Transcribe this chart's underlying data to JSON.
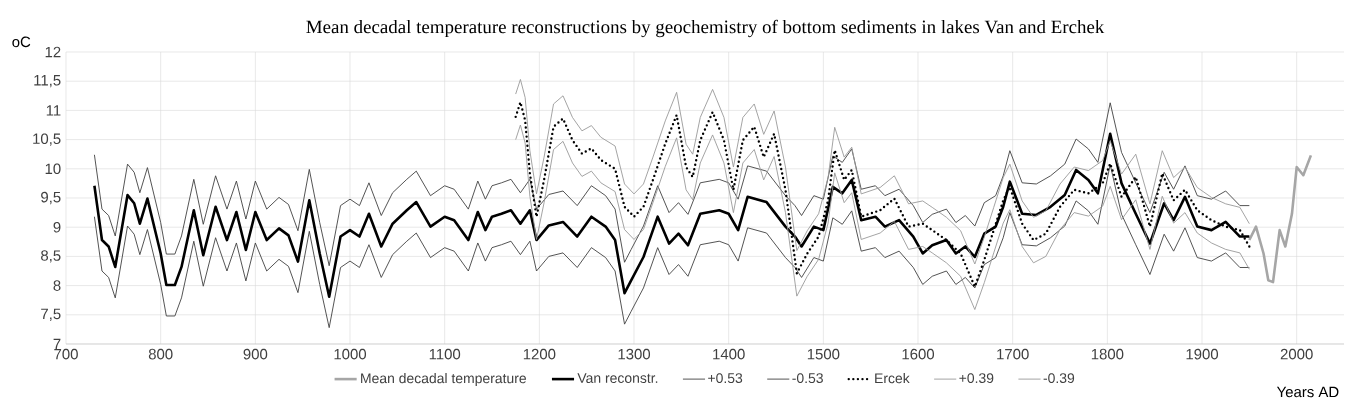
{
  "chart_data": {
    "type": "line",
    "title": "Mean decadal temperature reconstructions by geochemistry of bottom sediments in lakes Van and Erchek",
    "xlabel": "Years AD",
    "ylabel": "oC",
    "xlim": [
      700,
      2050
    ],
    "ylim": [
      7,
      12
    ],
    "xticks": [
      700,
      800,
      900,
      1000,
      1100,
      1200,
      1300,
      1400,
      1500,
      1600,
      1700,
      1800,
      1900,
      2000
    ],
    "yticks": [
      7,
      {
        "value": 7.5,
        "label": "7,5"
      },
      8,
      {
        "value": 8.5,
        "label": "8,5"
      },
      9,
      {
        "value": 9.5,
        "label": "9,5"
      },
      10,
      {
        "value": 10.5,
        "label": "10,5"
      },
      11,
      {
        "value": 11.5,
        "label": "11,5"
      },
      12
    ],
    "grid": true,
    "legend": "bottom",
    "series": [
      {
        "name": "Mean decadal temperature",
        "color": "#a6a6a6",
        "x": [
          1950,
          1957,
          1965,
          1970,
          1975,
          1982,
          1988,
          1995,
          2000,
          2007,
          2015
        ],
        "values": [
          8.78,
          9.01,
          8.55,
          8.09,
          8.06,
          8.95,
          8.67,
          9.23,
          10.03,
          9.89,
          10.23
        ]
      },
      {
        "name": "Van reconstr.",
        "color": "#000000",
        "x": [
          730,
          738,
          745,
          752,
          765,
          772,
          778,
          786,
          800,
          806,
          815,
          822,
          835,
          845,
          858,
          870,
          880,
          890,
          900,
          912,
          925,
          935,
          945,
          957,
          968,
          978,
          990,
          1000,
          1010,
          1020,
          1033,
          1045,
          1060,
          1070,
          1085,
          1100,
          1110,
          1125,
          1135,
          1143,
          1150,
          1160,
          1170,
          1180,
          1190,
          1197,
          1210,
          1225,
          1240,
          1255,
          1270,
          1280,
          1290,
          1297,
          1310,
          1325,
          1337,
          1347,
          1357,
          1370,
          1390,
          1400,
          1410,
          1420,
          1440,
          1460,
          1470,
          1477,
          1490,
          1500,
          1510,
          1520,
          1530,
          1540,
          1555,
          1565,
          1580,
          1595,
          1605,
          1615,
          1630,
          1640,
          1650,
          1660,
          1670,
          1682,
          1690,
          1697,
          1710,
          1725,
          1740,
          1755,
          1767,
          1780,
          1790,
          1803,
          1815,
          1830,
          1845,
          1860,
          1870,
          1882,
          1895,
          1910,
          1925,
          1940,
          1950
        ],
        "values": [
          9.71,
          8.78,
          8.67,
          8.32,
          9.55,
          9.41,
          9.06,
          9.49,
          8.55,
          8.01,
          8.01,
          8.32,
          9.29,
          8.52,
          9.35,
          8.78,
          9.26,
          8.61,
          9.26,
          8.78,
          8.98,
          8.86,
          8.41,
          9.46,
          8.55,
          7.81,
          8.84,
          8.95,
          8.84,
          9.23,
          8.67,
          9.06,
          9.29,
          9.43,
          9.01,
          9.18,
          9.12,
          8.78,
          9.26,
          8.95,
          9.18,
          9.23,
          9.29,
          9.06,
          9.29,
          8.78,
          9.03,
          9.09,
          8.84,
          9.18,
          9.01,
          8.78,
          7.87,
          8.09,
          8.49,
          9.18,
          8.72,
          8.89,
          8.69,
          9.23,
          9.29,
          9.23,
          8.95,
          9.52,
          9.43,
          9.01,
          8.84,
          8.67,
          9.01,
          8.95,
          9.69,
          9.58,
          9.81,
          9.12,
          9.18,
          9.01,
          9.12,
          8.84,
          8.55,
          8.69,
          8.78,
          8.55,
          8.67,
          8.49,
          8.89,
          9.01,
          9.35,
          9.78,
          9.23,
          9.21,
          9.35,
          9.55,
          9.98,
          9.81,
          9.58,
          10.6,
          9.75,
          9.23,
          8.72,
          9.41,
          9.12,
          9.52,
          9.01,
          8.95,
          9.09,
          8.84,
          8.84
        ]
      },
      {
        "name": "+0.53",
        "color": "#404040",
        "x": [
          730,
          738,
          745,
          752,
          765,
          772,
          778,
          786,
          800,
          806,
          815,
          822,
          835,
          845,
          858,
          870,
          880,
          890,
          900,
          912,
          925,
          935,
          945,
          957,
          968,
          978,
          990,
          1000,
          1010,
          1020,
          1033,
          1045,
          1060,
          1070,
          1085,
          1100,
          1110,
          1125,
          1135,
          1143,
          1150,
          1160,
          1170,
          1180,
          1190,
          1197,
          1210,
          1225,
          1240,
          1255,
          1270,
          1280,
          1290,
          1297,
          1310,
          1325,
          1337,
          1347,
          1357,
          1370,
          1390,
          1400,
          1410,
          1420,
          1440,
          1460,
          1470,
          1477,
          1490,
          1500,
          1510,
          1520,
          1530,
          1540,
          1555,
          1565,
          1580,
          1595,
          1605,
          1615,
          1630,
          1640,
          1650,
          1660,
          1670,
          1682,
          1690,
          1697,
          1710,
          1725,
          1740,
          1755,
          1767,
          1780,
          1790,
          1803,
          1815,
          1830,
          1845,
          1860,
          1870,
          1882,
          1895,
          1910,
          1925,
          1940,
          1950
        ],
        "values": [
          10.24,
          9.31,
          9.2,
          8.85,
          10.08,
          9.94,
          9.59,
          10.02,
          9.08,
          8.54,
          8.54,
          8.85,
          9.82,
          9.05,
          9.88,
          9.31,
          9.79,
          9.14,
          9.79,
          9.31,
          9.51,
          9.39,
          8.94,
          9.99,
          9.08,
          8.34,
          9.37,
          9.48,
          9.37,
          9.76,
          9.2,
          9.59,
          9.82,
          9.96,
          9.54,
          9.71,
          9.65,
          9.31,
          9.79,
          9.48,
          9.71,
          9.76,
          9.82,
          9.59,
          9.82,
          9.31,
          9.56,
          9.62,
          9.37,
          9.71,
          9.54,
          9.31,
          8.4,
          8.62,
          9.02,
          9.71,
          9.25,
          9.42,
          9.22,
          9.76,
          9.82,
          9.76,
          9.48,
          10.05,
          9.96,
          9.54,
          9.37,
          9.2,
          9.54,
          9.48,
          10.22,
          10.11,
          10.34,
          9.65,
          9.71,
          9.54,
          9.65,
          9.37,
          9.08,
          9.22,
          9.31,
          9.08,
          9.2,
          9.02,
          9.42,
          9.54,
          9.88,
          10.31,
          9.76,
          9.74,
          9.88,
          10.08,
          10.51,
          10.34,
          10.11,
          11.13,
          10.28,
          9.76,
          9.25,
          9.94,
          9.65,
          10.05,
          9.54,
          9.48,
          9.62,
          9.37,
          9.37
        ]
      },
      {
        "name": "-0.53",
        "color": "#404040",
        "x": [
          730,
          738,
          745,
          752,
          765,
          772,
          778,
          786,
          800,
          806,
          815,
          822,
          835,
          845,
          858,
          870,
          880,
          890,
          900,
          912,
          925,
          935,
          945,
          957,
          968,
          978,
          990,
          1000,
          1010,
          1020,
          1033,
          1045,
          1060,
          1070,
          1085,
          1100,
          1110,
          1125,
          1135,
          1143,
          1150,
          1160,
          1170,
          1180,
          1190,
          1197,
          1210,
          1225,
          1240,
          1255,
          1270,
          1280,
          1290,
          1297,
          1310,
          1325,
          1337,
          1347,
          1357,
          1370,
          1390,
          1400,
          1410,
          1420,
          1440,
          1460,
          1470,
          1477,
          1490,
          1500,
          1510,
          1520,
          1530,
          1540,
          1555,
          1565,
          1580,
          1595,
          1605,
          1615,
          1630,
          1640,
          1650,
          1660,
          1670,
          1682,
          1690,
          1697,
          1710,
          1725,
          1740,
          1755,
          1767,
          1780,
          1790,
          1803,
          1815,
          1830,
          1845,
          1860,
          1870,
          1882,
          1895,
          1910,
          1925,
          1940,
          1950
        ],
        "values": [
          9.18,
          8.25,
          8.14,
          7.79,
          9.02,
          8.88,
          8.53,
          8.96,
          8.02,
          7.48,
          7.48,
          7.79,
          8.76,
          7.99,
          8.82,
          8.25,
          8.73,
          8.08,
          8.73,
          8.25,
          8.45,
          8.33,
          7.88,
          8.93,
          8.02,
          7.28,
          8.31,
          8.42,
          8.31,
          8.7,
          8.14,
          8.53,
          8.76,
          8.9,
          8.48,
          8.65,
          8.59,
          8.25,
          8.73,
          8.42,
          8.65,
          8.7,
          8.76,
          8.53,
          8.76,
          8.25,
          8.5,
          8.56,
          8.31,
          8.65,
          8.48,
          8.25,
          7.34,
          7.56,
          7.96,
          8.65,
          8.19,
          8.36,
          8.16,
          8.7,
          8.76,
          8.7,
          8.42,
          8.99,
          8.9,
          8.48,
          8.31,
          8.14,
          8.48,
          8.42,
          9.16,
          9.05,
          9.28,
          8.59,
          8.65,
          8.48,
          8.59,
          8.31,
          8.02,
          8.16,
          8.25,
          8.02,
          8.14,
          7.96,
          8.36,
          8.48,
          8.82,
          9.25,
          8.7,
          8.68,
          8.82,
          9.02,
          9.45,
          9.28,
          9.05,
          10.07,
          9.22,
          8.7,
          8.19,
          8.88,
          8.59,
          8.99,
          8.48,
          8.42,
          8.56,
          8.31,
          8.31
        ]
      },
      {
        "name": "Ercek",
        "color": "#000000",
        "line_style": "dotted",
        "x": [
          1175,
          1180,
          1185,
          1190,
          1197,
          1205,
          1215,
          1225,
          1235,
          1245,
          1255,
          1265,
          1280,
          1290,
          1300,
          1310,
          1320,
          1333,
          1345,
          1355,
          1362,
          1370,
          1383,
          1395,
          1405,
          1415,
          1427,
          1437,
          1448,
          1460,
          1472,
          1483,
          1495,
          1505,
          1512,
          1522,
          1530,
          1540,
          1560,
          1575,
          1590,
          1605,
          1615,
          1630,
          1645,
          1660,
          1670,
          1680,
          1690,
          1697,
          1710,
          1722,
          1735,
          1750,
          1765,
          1780,
          1795,
          1803,
          1815,
          1830,
          1845,
          1858,
          1870,
          1882,
          1895,
          1910,
          1925,
          1940,
          1950
        ],
        "values": [
          10.89,
          11.14,
          10.83,
          9.92,
          9.18,
          9.81,
          10.72,
          10.86,
          10.49,
          10.26,
          10.35,
          10.15,
          10.0,
          9.35,
          9.18,
          9.35,
          9.81,
          10.43,
          10.92,
          10.03,
          9.86,
          10.49,
          10.97,
          10.49,
          9.64,
          10.49,
          10.72,
          10.2,
          10.6,
          9.64,
          8.21,
          8.55,
          8.84,
          9.46,
          10.32,
          9.81,
          9.98,
          9.18,
          9.29,
          9.49,
          9.01,
          9.06,
          8.95,
          8.78,
          8.55,
          7.98,
          8.44,
          8.95,
          9.46,
          9.69,
          9.06,
          8.78,
          8.89,
          9.35,
          9.64,
          9.58,
          9.75,
          10.09,
          9.52,
          9.86,
          9.01,
          9.92,
          9.46,
          9.64,
          9.29,
          9.12,
          9.01,
          8.95,
          8.67
        ]
      },
      {
        "name": "+0.39",
        "color": "#999999",
        "x": [
          1175,
          1180,
          1185,
          1190,
          1197,
          1205,
          1215,
          1225,
          1235,
          1245,
          1255,
          1265,
          1280,
          1290,
          1300,
          1310,
          1320,
          1333,
          1345,
          1355,
          1362,
          1370,
          1383,
          1395,
          1405,
          1415,
          1427,
          1437,
          1448,
          1460,
          1472,
          1483,
          1495,
          1505,
          1512,
          1522,
          1530,
          1540,
          1560,
          1575,
          1590,
          1605,
          1615,
          1630,
          1645,
          1660,
          1670,
          1680,
          1690,
          1697,
          1710,
          1722,
          1735,
          1750,
          1765,
          1780,
          1795,
          1803,
          1815,
          1830,
          1845,
          1858,
          1870,
          1882,
          1895,
          1910,
          1925,
          1940,
          1950
        ],
        "values": [
          11.28,
          11.53,
          11.22,
          10.31,
          9.57,
          10.2,
          11.11,
          11.25,
          10.88,
          10.65,
          10.74,
          10.54,
          10.39,
          9.74,
          9.57,
          9.74,
          10.2,
          10.82,
          11.31,
          10.42,
          10.25,
          10.88,
          11.36,
          10.88,
          10.03,
          10.88,
          11.11,
          10.59,
          10.99,
          10.03,
          8.6,
          8.94,
          9.23,
          9.85,
          10.71,
          10.2,
          10.37,
          9.57,
          9.68,
          9.88,
          9.4,
          9.45,
          9.34,
          9.17,
          8.94,
          8.37,
          8.83,
          9.34,
          9.85,
          10.08,
          9.45,
          9.17,
          9.28,
          9.74,
          10.03,
          9.97,
          10.14,
          10.48,
          9.91,
          10.25,
          9.4,
          10.31,
          9.85,
          10.03,
          9.68,
          9.51,
          9.4,
          9.34,
          9.06
        ]
      },
      {
        "name": "-0.39",
        "color": "#999999",
        "x": [
          1175,
          1180,
          1185,
          1190,
          1197,
          1205,
          1215,
          1225,
          1235,
          1245,
          1255,
          1265,
          1280,
          1290,
          1300,
          1310,
          1320,
          1333,
          1345,
          1355,
          1362,
          1370,
          1383,
          1395,
          1405,
          1415,
          1427,
          1437,
          1448,
          1460,
          1472,
          1483,
          1495,
          1505,
          1512,
          1522,
          1530,
          1540,
          1560,
          1575,
          1590,
          1605,
          1615,
          1630,
          1645,
          1660,
          1670,
          1680,
          1690,
          1697,
          1710,
          1722,
          1735,
          1750,
          1765,
          1780,
          1795,
          1803,
          1815,
          1830,
          1845,
          1858,
          1870,
          1882,
          1895,
          1910,
          1925,
          1940,
          1950
        ],
        "values": [
          10.5,
          10.75,
          10.44,
          9.53,
          8.79,
          9.42,
          10.33,
          10.47,
          10.1,
          9.87,
          9.96,
          9.76,
          9.61,
          8.96,
          8.79,
          8.96,
          9.42,
          10.04,
          10.53,
          9.64,
          9.47,
          10.1,
          10.58,
          10.1,
          9.25,
          10.1,
          10.33,
          9.81,
          10.21,
          9.25,
          7.82,
          8.16,
          8.45,
          9.07,
          9.93,
          9.42,
          9.59,
          8.79,
          8.9,
          9.1,
          8.62,
          8.67,
          8.56,
          8.39,
          8.16,
          7.59,
          8.05,
          8.56,
          9.07,
          9.3,
          8.67,
          8.39,
          8.5,
          8.96,
          9.25,
          9.19,
          9.36,
          9.7,
          9.13,
          9.47,
          8.62,
          9.53,
          9.07,
          9.25,
          8.9,
          8.73,
          8.62,
          8.56,
          8.28
        ]
      }
    ]
  }
}
